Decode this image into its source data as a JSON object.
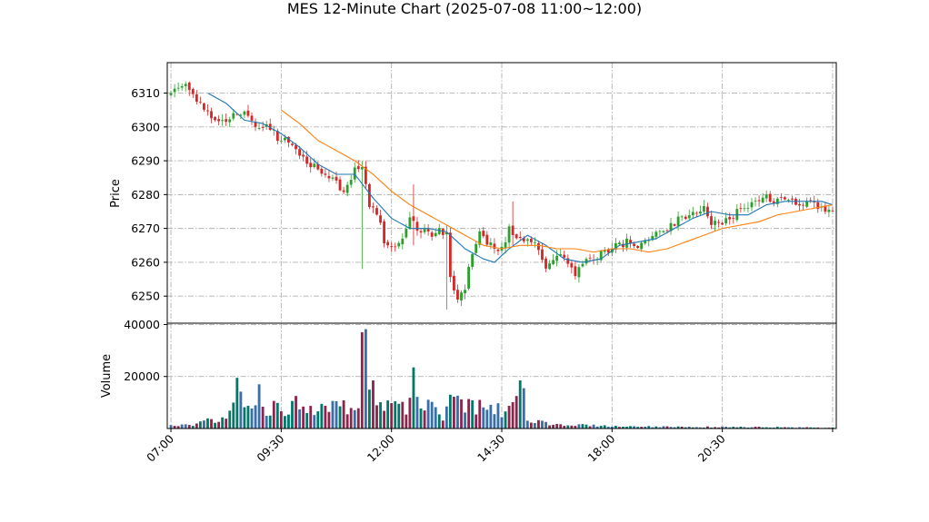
{
  "title": "MES 12-Minute Chart (2025-07-08 11:00~12:00)",
  "colors": {
    "up": "#2ca02c",
    "down": "#d62728",
    "ma_short": "#1f77b4",
    "ma_long": "#ff7f0e",
    "volume_up": "#00796b",
    "volume_down": "#8e244d",
    "volume_mixed": "#3b6ea5"
  },
  "chart_data": {
    "type": "candlestick",
    "price_panel": {
      "ylabel": "Price",
      "ylim": [
        6242,
        6319
      ],
      "yticks": [
        6250,
        6260,
        6270,
        6280,
        6290,
        6300,
        6310
      ],
      "grid": true
    },
    "volume_panel": {
      "ylabel": "Volume",
      "ylim": [
        0,
        40500
      ],
      "yticks": [
        20000,
        40000
      ],
      "grid": true
    },
    "x_axis": {
      "xlim": [
        -1,
        181
      ],
      "ticks": [
        {
          "x": 0,
          "label": "07:00"
        },
        {
          "x": 30,
          "label": "09:30"
        },
        {
          "x": 60,
          "label": "12:00"
        },
        {
          "x": 90,
          "label": "14:30"
        },
        {
          "x": 120,
          "label": "18:00"
        },
        {
          "x": 150,
          "label": "20:30"
        },
        {
          "x": 180,
          "label": ""
        }
      ]
    },
    "close_anchors": [
      [
        0,
        6310
      ],
      [
        3,
        6313
      ],
      [
        5,
        6311
      ],
      [
        8,
        6307
      ],
      [
        11,
        6302
      ],
      [
        14,
        6301
      ],
      [
        17,
        6303
      ],
      [
        20,
        6305
      ],
      [
        23,
        6299
      ],
      [
        26,
        6301
      ],
      [
        29,
        6297
      ],
      [
        32,
        6296
      ],
      [
        35,
        6291
      ],
      [
        38,
        6289
      ],
      [
        41,
        6287
      ],
      [
        44,
        6285
      ],
      [
        47,
        6281
      ],
      [
        50,
        6287
      ],
      [
        52,
        6288
      ],
      [
        54,
        6276
      ],
      [
        56,
        6275
      ],
      [
        58,
        6266
      ],
      [
        60,
        6265
      ],
      [
        63,
        6267
      ],
      [
        65,
        6274
      ],
      [
        67,
        6270
      ],
      [
        70,
        6268
      ],
      [
        73,
        6270
      ],
      [
        75,
        6268
      ],
      [
        76,
        6256
      ],
      [
        78,
        6248
      ],
      [
        80,
        6253
      ],
      [
        82,
        6262
      ],
      [
        84,
        6268
      ],
      [
        86,
        6266
      ],
      [
        88,
        6264
      ],
      [
        90,
        6264
      ],
      [
        92,
        6270
      ],
      [
        94,
        6268
      ],
      [
        96,
        6266
      ],
      [
        99,
        6265
      ],
      [
        102,
        6258
      ],
      [
        105,
        6262
      ],
      [
        108,
        6260
      ],
      [
        110,
        6256
      ],
      [
        112,
        6260
      ],
      [
        115,
        6261
      ],
      [
        118,
        6263
      ],
      [
        121,
        6265
      ],
      [
        124,
        6266
      ],
      [
        127,
        6265
      ],
      [
        130,
        6267
      ],
      [
        133,
        6269
      ],
      [
        136,
        6271
      ],
      [
        139,
        6273
      ],
      [
        142,
        6275
      ],
      [
        145,
        6276
      ],
      [
        147,
        6272
      ],
      [
        150,
        6271
      ],
      [
        153,
        6274
      ],
      [
        156,
        6276
      ],
      [
        159,
        6279
      ],
      [
        162,
        6279
      ],
      [
        165,
        6278
      ],
      [
        168,
        6278
      ],
      [
        171,
        6277
      ],
      [
        174,
        6278
      ],
      [
        177,
        6276
      ],
      [
        180,
        6276
      ]
    ],
    "ma_short": {
      "start": 10,
      "points": [
        [
          10,
          6310
        ],
        [
          15,
          6307
        ],
        [
          20,
          6302
        ],
        [
          25,
          6301
        ],
        [
          30,
          6298
        ],
        [
          35,
          6294
        ],
        [
          40,
          6289
        ],
        [
          45,
          6286
        ],
        [
          50,
          6286
        ],
        [
          55,
          6279
        ],
        [
          60,
          6273
        ],
        [
          65,
          6270
        ],
        [
          70,
          6270
        ],
        [
          75,
          6269
        ],
        [
          80,
          6264
        ],
        [
          85,
          6261
        ],
        [
          88,
          6260
        ],
        [
          92,
          6264
        ],
        [
          97,
          6268
        ],
        [
          102,
          6265
        ],
        [
          107,
          6261
        ],
        [
          112,
          6260
        ],
        [
          117,
          6261
        ],
        [
          122,
          6265
        ],
        [
          127,
          6266
        ],
        [
          132,
          6267
        ],
        [
          137,
          6270
        ],
        [
          142,
          6273
        ],
        [
          147,
          6275
        ],
        [
          152,
          6274
        ],
        [
          157,
          6274
        ],
        [
          162,
          6277
        ],
        [
          167,
          6278
        ],
        [
          172,
          6278
        ],
        [
          177,
          6278
        ],
        [
          180,
          6277
        ]
      ]
    },
    "ma_long": {
      "start": 30,
      "points": [
        [
          30,
          6305
        ],
        [
          35,
          6301
        ],
        [
          40,
          6296
        ],
        [
          45,
          6293
        ],
        [
          50,
          6290
        ],
        [
          55,
          6286
        ],
        [
          60,
          6281
        ],
        [
          65,
          6277
        ],
        [
          70,
          6274
        ],
        [
          75,
          6271
        ],
        [
          80,
          6268
        ],
        [
          85,
          6265
        ],
        [
          90,
          6264
        ],
        [
          95,
          6265
        ],
        [
          100,
          6265
        ],
        [
          105,
          6264
        ],
        [
          110,
          6264
        ],
        [
          115,
          6263
        ],
        [
          120,
          6264
        ],
        [
          125,
          6264
        ],
        [
          130,
          6263
        ],
        [
          135,
          6264
        ],
        [
          140,
          6266
        ],
        [
          145,
          6268
        ],
        [
          150,
          6270
        ],
        [
          155,
          6271
        ],
        [
          160,
          6272
        ],
        [
          165,
          6274
        ],
        [
          170,
          6275
        ],
        [
          175,
          6276
        ],
        [
          180,
          6277
        ]
      ]
    },
    "volume_anchors": [
      [
        0,
        1000
      ],
      [
        5,
        1400
      ],
      [
        10,
        2800
      ],
      [
        15,
        3200
      ],
      [
        18,
        12000
      ],
      [
        20,
        9000
      ],
      [
        23,
        11000
      ],
      [
        25,
        7000
      ],
      [
        28,
        8000
      ],
      [
        30,
        7500
      ],
      [
        34,
        9000
      ],
      [
        38,
        8000
      ],
      [
        42,
        7000
      ],
      [
        46,
        8500
      ],
      [
        50,
        7500
      ],
      [
        52,
        18000
      ],
      [
        53,
        36000
      ],
      [
        54,
        19000
      ],
      [
        56,
        11000
      ],
      [
        60,
        9000
      ],
      [
        63,
        8000
      ],
      [
        66,
        10000
      ],
      [
        68,
        9000
      ],
      [
        72,
        7000
      ],
      [
        74,
        5000
      ],
      [
        76,
        8500
      ],
      [
        78,
        11000
      ],
      [
        80,
        10000
      ],
      [
        84,
        8500
      ],
      [
        88,
        8000
      ],
      [
        90,
        6000
      ],
      [
        93,
        10000
      ],
      [
        95,
        16000
      ],
      [
        97,
        3000
      ],
      [
        100,
        2000
      ],
      [
        105,
        1600
      ],
      [
        110,
        1300
      ],
      [
        120,
        900
      ],
      [
        130,
        700
      ],
      [
        140,
        600
      ],
      [
        150,
        600
      ],
      [
        160,
        550
      ],
      [
        170,
        400
      ],
      [
        180,
        300
      ]
    ],
    "volume_spikes": [
      [
        18,
        19500
      ],
      [
        24,
        17000
      ],
      [
        34,
        12500
      ],
      [
        45,
        10500
      ],
      [
        52,
        37000
      ],
      [
        53,
        38200
      ],
      [
        62,
        9500
      ],
      [
        66,
        23500
      ],
      [
        76,
        13000
      ],
      [
        84,
        11000
      ],
      [
        95,
        18500
      ],
      [
        96,
        15500
      ],
      [
        100,
        3200
      ],
      [
        101,
        3000
      ]
    ],
    "price_spikes": [
      [
        52,
        6258,
        6290
      ],
      [
        66,
        6265,
        6283
      ],
      [
        75,
        6246,
        6271
      ],
      [
        93,
        6265,
        6278
      ]
    ]
  }
}
